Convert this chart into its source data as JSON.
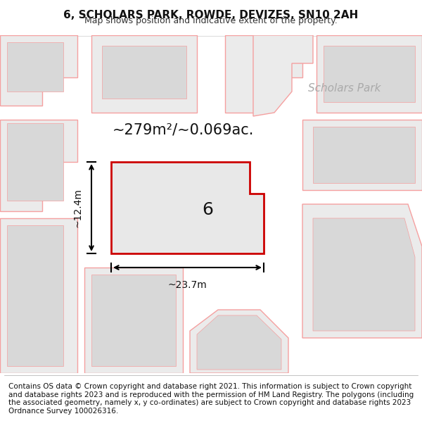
{
  "title": "6, SCHOLARS PARK, ROWDE, DEVIZES, SN10 2AH",
  "subtitle": "Map shows position and indicative extent of the property.",
  "footer": "Contains OS data © Crown copyright and database right 2021. This information is subject to Crown copyright and database rights 2023 and is reproduced with the permission of HM Land Registry. The polygons (including the associated geometry, namely x, y co-ordinates) are subject to Crown copyright and database rights 2023 Ordnance Survey 100026316.",
  "area_label": "~279m²/~0.069ac.",
  "number_label": "6",
  "width_label": "~23.7m",
  "height_label": "~12.4m",
  "scholars_park_label": "Scholars Park",
  "bg_color": "#ffffff",
  "map_bg": "#f5f5f5",
  "highlight_color": "#cc0000",
  "highlight_fill": "#e8e8e8",
  "neighbor_color": "#f5a0a0",
  "neighbor_fill": "#ebebeb",
  "text_color": "#333333",
  "gray_fill": "#d8d8d8",
  "title_fontsize": 11,
  "subtitle_fontsize": 9,
  "footer_fontsize": 7.5
}
